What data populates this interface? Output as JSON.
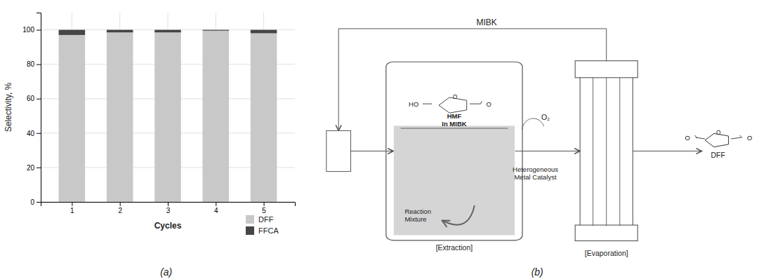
{
  "chart_data": {
    "type": "bar",
    "stacked": true,
    "x": [
      1,
      2,
      3,
      4,
      5
    ],
    "xlabel": "Cycles",
    "ylabel": "Selectivity, %",
    "series": [
      {
        "name": "DFF",
        "color": "#c8c8c8",
        "values": [
          97.0,
          98.5,
          98.5,
          99.5,
          98.0
        ]
      },
      {
        "name": "FFCA",
        "color": "#454545",
        "values": [
          3.0,
          1.5,
          1.5,
          0.5,
          2.0
        ]
      }
    ],
    "xlim": [
      0.35,
      5.65
    ],
    "xticks": [
      1,
      2,
      3,
      4,
      5
    ],
    "ylim": [
      0,
      110
    ],
    "yticks": [
      0,
      20,
      40,
      60,
      80,
      100
    ],
    "grid": true,
    "legend": "lower right",
    "annotations": [
      "HO",
      "O",
      "O",
      "HMF\nIn MIBK",
      "Reaction\nMixture",
      "[Extraction]",
      "[Evaporation]",
      "O₂",
      "Heterogeneous\nMetal Catalyst",
      "O",
      "O",
      "O",
      "DFF",
      "MIBK",
      "(a)",
      "(b)"
    ]
  }
}
